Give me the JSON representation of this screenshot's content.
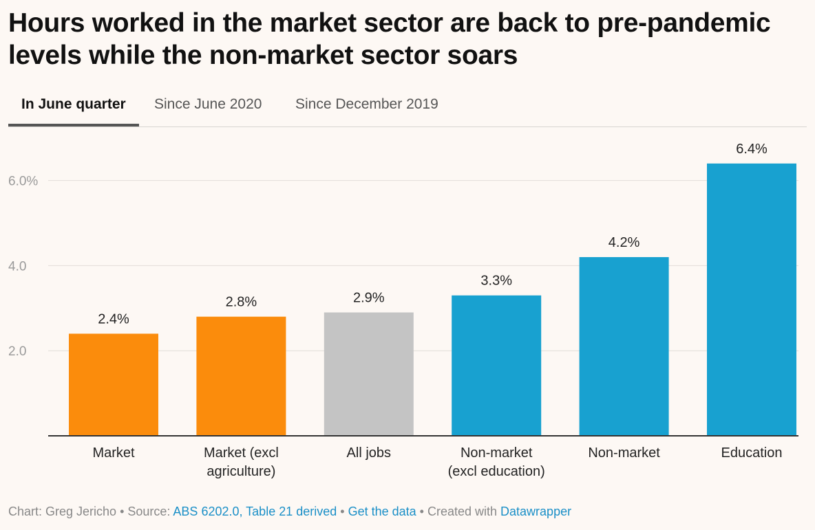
{
  "title": "Hours worked in the market sector are back to pre-pandemic levels while the non-market sector soars",
  "tabs": [
    {
      "label": "In June quarter",
      "active": true
    },
    {
      "label": "Since June 2020",
      "active": false
    },
    {
      "label": "Since December 2019",
      "active": false
    }
  ],
  "chart_data": {
    "type": "bar",
    "categories": [
      [
        "Market"
      ],
      [
        "Market (excl",
        "agriculture)"
      ],
      [
        "All jobs"
      ],
      [
        "Non-market",
        "(excl education)"
      ],
      [
        "Non-market"
      ],
      [
        "Education"
      ]
    ],
    "values": [
      2.4,
      2.8,
      2.9,
      3.3,
      4.2,
      6.4
    ],
    "value_labels": [
      "2.4%",
      "2.8%",
      "2.9%",
      "3.3%",
      "4.2%",
      "6.4%"
    ],
    "colors": [
      "#fb8c0c",
      "#fb8c0c",
      "#c4c4c4",
      "#18a1d0",
      "#18a1d0",
      "#18a1d0"
    ],
    "yticks": [
      {
        "value": 2,
        "label": "2.0"
      },
      {
        "value": 4,
        "label": "4.0"
      },
      {
        "value": 6,
        "label": "6.0%"
      }
    ],
    "ylim": [
      0,
      7
    ],
    "grid": true
  },
  "footer": {
    "chart_prefix": "Chart: Greg Jericho",
    "sep1": " • ",
    "source_prefix": "Source: ",
    "source_link": "ABS 6202.0, Table 21 derived",
    "sep2": " • ",
    "data_link": "Get the data",
    "sep3": " • ",
    "created_prefix": "Created with ",
    "tool_link": "Datawrapper"
  }
}
